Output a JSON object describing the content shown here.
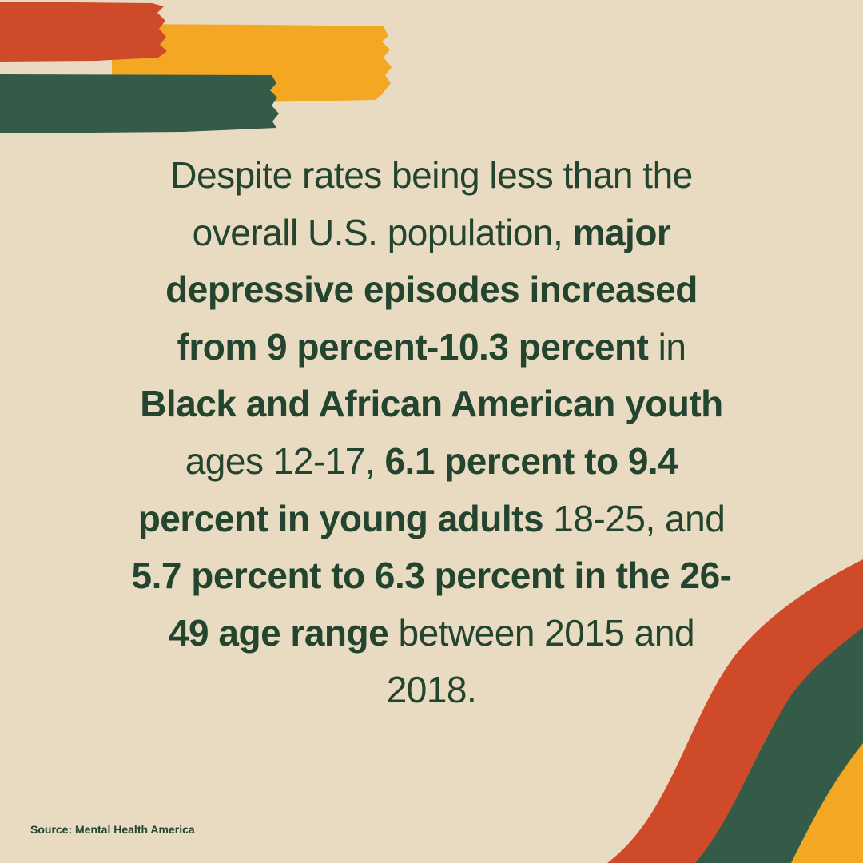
{
  "statement": {
    "segments": [
      {
        "text": "Despite rates being less than the overall U.S. population, ",
        "bold": false
      },
      {
        "text": "major depressive episodes increased from 9 percent-10.3 percent",
        "bold": true
      },
      {
        "text": " in ",
        "bold": false
      },
      {
        "text": "Black and African American youth",
        "bold": true
      },
      {
        "text": " ages 12-17, ",
        "bold": false
      },
      {
        "text": "6.1 percent to 9.4 percent in young adults",
        "bold": true
      },
      {
        "text": " 18-25, and ",
        "bold": false
      },
      {
        "text": "5.7 percent to 6.3 percent in the 26-49 age range",
        "bold": true
      },
      {
        "text": " between 2015 and 2018.",
        "bold": false
      }
    ]
  },
  "source": "Source: Mental Health America",
  "colors": {
    "background": "#e9dbc2",
    "text": "#23442f",
    "red": "#cf4a28",
    "yellow": "#f3a723",
    "green": "#345a48"
  }
}
